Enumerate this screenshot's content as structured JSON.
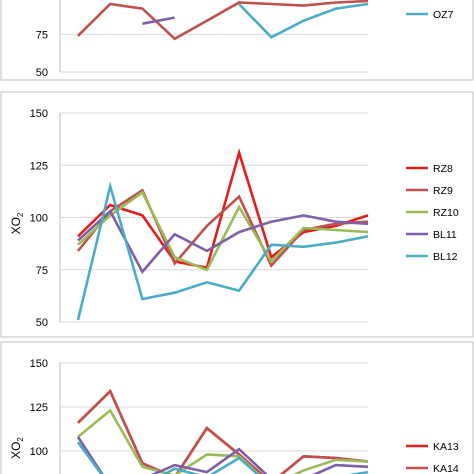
{
  "chart_data": [
    {
      "type": "line",
      "panel": "top (partially visible)",
      "ylabel": "",
      "ylim": [
        50,
        150
      ],
      "yticks": [
        50,
        75
      ],
      "grid": true,
      "legend_position": "right",
      "x": [
        1,
        2,
        3,
        4,
        5,
        6,
        7,
        8,
        9,
        10
      ],
      "series": [
        {
          "name": "",
          "color": "#C0504D",
          "values": [
            74,
            95,
            92,
            72,
            84,
            96,
            95,
            94,
            96,
            97
          ]
        },
        {
          "name": "",
          "color": "#7F5FA6",
          "values": [
            null,
            null,
            82,
            86,
            null,
            null,
            null,
            null,
            null,
            null
          ]
        },
        {
          "name": "OZ7",
          "color": "#4BACC6",
          "values": [
            null,
            null,
            null,
            null,
            null,
            95,
            73,
            84,
            92,
            95
          ]
        }
      ]
    },
    {
      "type": "line",
      "panel": "middle",
      "ylabel": "XO",
      "ylabel_sub": "2",
      "ylim": [
        50,
        150
      ],
      "yticks": [
        50,
        75,
        100,
        125,
        150
      ],
      "grid": true,
      "legend_position": "right",
      "x": [
        1,
        2,
        3,
        4,
        5,
        6,
        7,
        8,
        9,
        10
      ],
      "series": [
        {
          "name": "RZ8",
          "color": "#E41E1E",
          "values": [
            91,
            106,
            101,
            79,
            76,
            131,
            81,
            93,
            96,
            101
          ]
        },
        {
          "name": "RZ9",
          "color": "#C0504D",
          "values": [
            84,
            103,
            113,
            78,
            96,
            110,
            77,
            94,
            97,
            98
          ]
        },
        {
          "name": "RZ10",
          "color": "#9BBB59",
          "values": [
            87,
            101,
            112,
            81,
            75,
            105,
            79,
            95,
            94,
            93
          ]
        },
        {
          "name": "BL11",
          "color": "#7F5FA6",
          "values": [
            89,
            103,
            74,
            92,
            84,
            93,
            98,
            101,
            98,
            97
          ]
        },
        {
          "name": "BL12",
          "color": "#4BACC6",
          "values": [
            51,
            115,
            61,
            64,
            69,
            65,
            87,
            86,
            88,
            91
          ]
        }
      ]
    },
    {
      "type": "line",
      "panel": "bottom (partially visible)",
      "ylabel": "XO",
      "ylabel_sub": "2",
      "ylim": [
        50,
        150
      ],
      "yticks": [
        100,
        125,
        150
      ],
      "grid": true,
      "legend_position": "right",
      "x": [
        1,
        2,
        3,
        4,
        5,
        6,
        7,
        8,
        9,
        10
      ],
      "series": [
        {
          "name": "KA13",
          "color": "#E41E1E",
          "values": [
            116,
            134,
            93,
            85,
            113,
            98,
            82,
            97,
            96,
            94
          ]
        },
        {
          "name": "KA14",
          "color": "#C0504D",
          "values": [
            116,
            134,
            93,
            85,
            113,
            98,
            82,
            97,
            96,
            94
          ]
        },
        {
          "name": "",
          "color": "#9BBB59",
          "values": [
            108,
            123,
            91,
            86,
            98,
            97,
            80,
            89,
            95,
            94
          ]
        },
        {
          "name": "",
          "color": "#7F5FA6",
          "values": [
            108,
            80,
            84,
            92,
            88,
            101,
            84,
            84,
            92,
            91
          ]
        },
        {
          "name": "",
          "color": "#4BACC6",
          "values": [
            105,
            80,
            80,
            90,
            85,
            96,
            80,
            80,
            85,
            88
          ]
        }
      ]
    }
  ]
}
